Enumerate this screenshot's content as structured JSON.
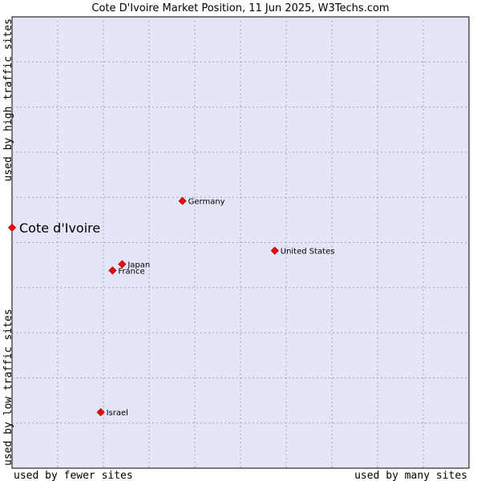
{
  "chart_data": {
    "type": "scatter",
    "title": "Cote D'Ivoire Market Position, 11 Jun 2025, W3Techs.com",
    "x_axis": {
      "label_low": "used by fewer sites",
      "label_high": "used by many sites"
    },
    "y_axis": {
      "label_low": "used by low traffic sites",
      "label_high": "used by high traffic sites"
    },
    "xlim": [
      0,
      100
    ],
    "ylim": [
      0,
      100
    ],
    "grid": true,
    "points": [
      {
        "name": "Cote d'Ivoire",
        "x": 0,
        "y": 53.3,
        "highlight": true
      },
      {
        "name": "Germany",
        "x": 37.3,
        "y": 59.2
      },
      {
        "name": "United States",
        "x": 57.5,
        "y": 48.2
      },
      {
        "name": "Japan",
        "x": 24.1,
        "y": 45.2
      },
      {
        "name": "France",
        "x": 22.0,
        "y": 43.8
      },
      {
        "name": "Israel",
        "x": 19.4,
        "y": 12.4
      }
    ]
  },
  "colors": {
    "plot_background": "#e4e6f8",
    "grid": "#a0a0c0",
    "point": "#ff0000"
  }
}
